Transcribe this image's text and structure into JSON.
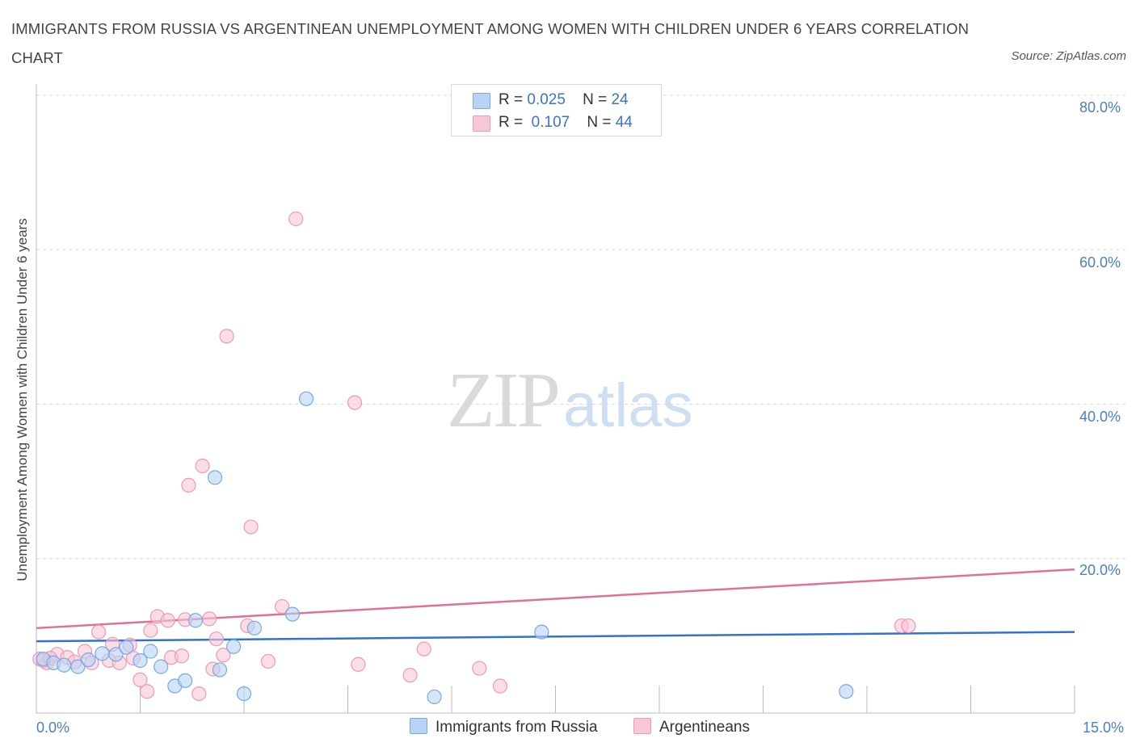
{
  "title": "IMMIGRANTS FROM RUSSIA VS ARGENTINEAN UNEMPLOYMENT AMONG WOMEN WITH CHILDREN UNDER 6 YEARS CORRELATION CHART",
  "source": "Source: ZipAtlas.com",
  "watermark": {
    "zip": "ZIP",
    "atlas": "atlas"
  },
  "legend": {
    "rows": [
      {
        "r_label": "R =",
        "r_value": "0.025",
        "n_label": "N =",
        "n_value": "24"
      },
      {
        "r_label": "R =",
        "r_value": "0.107",
        "n_label": "N =",
        "n_value": "44"
      }
    ]
  },
  "bottom_legend": {
    "series1": "Immigrants from Russia",
    "series2": "Argentineans"
  },
  "colors": {
    "series1_fill": "#b8d3f5",
    "series1_stroke": "#7aa8e4",
    "series1_line": "#3172cc",
    "series2_fill": "#f8c6d6",
    "series2_stroke": "#ec9ab6",
    "series2_line": "#e0709a",
    "axis_text": "#4a7ecf",
    "grid": "#d9d9d9"
  },
  "chart_data": {
    "type": "scatter",
    "title": "IMMIGRANTS FROM RUSSIA VS ARGENTINEAN UNEMPLOYMENT AMONG WOMEN WITH CHILDREN UNDER 6 YEARS CORRELATION CHART",
    "xlabel": "",
    "ylabel": "Unemployment Among Women with Children Under 6 years",
    "xlim": [
      0,
      15
    ],
    "ylim": [
      0,
      80
    ],
    "x_tick_labels": [
      "0.0%",
      "15.0%"
    ],
    "y_tick_labels": [
      "20.0%",
      "40.0%",
      "60.0%",
      "80.0%"
    ],
    "y_ticks": [
      20,
      40,
      60,
      80
    ],
    "grid": true,
    "series": [
      {
        "name": "Immigrants from Russia",
        "R": 0.025,
        "N": 24,
        "trend": {
          "x": [
            0,
            15
          ],
          "y": [
            9.3,
            10.5
          ]
        },
        "points": [
          {
            "x": 0.1,
            "y": 7.0
          },
          {
            "x": 0.25,
            "y": 6.5
          },
          {
            "x": 0.4,
            "y": 6.2
          },
          {
            "x": 0.6,
            "y": 6.0
          },
          {
            "x": 0.75,
            "y": 6.9
          },
          {
            "x": 0.95,
            "y": 7.7
          },
          {
            "x": 1.15,
            "y": 7.6
          },
          {
            "x": 1.3,
            "y": 8.5
          },
          {
            "x": 1.5,
            "y": 6.8
          },
          {
            "x": 1.65,
            "y": 8.0
          },
          {
            "x": 1.8,
            "y": 6.0
          },
          {
            "x": 2.0,
            "y": 3.5
          },
          {
            "x": 2.15,
            "y": 4.2
          },
          {
            "x": 2.3,
            "y": 12.0
          },
          {
            "x": 2.58,
            "y": 30.5
          },
          {
            "x": 2.65,
            "y": 5.6
          },
          {
            "x": 2.85,
            "y": 8.6
          },
          {
            "x": 3.0,
            "y": 2.5
          },
          {
            "x": 3.15,
            "y": 11.0
          },
          {
            "x": 3.7,
            "y": 12.8
          },
          {
            "x": 3.9,
            "y": 40.7
          },
          {
            "x": 5.75,
            "y": 2.1
          },
          {
            "x": 7.3,
            "y": 10.5
          },
          {
            "x": 11.7,
            "y": 2.8
          }
        ]
      },
      {
        "name": "Argentineans",
        "R": 0.107,
        "N": 44,
        "trend": {
          "x": [
            0,
            15
          ],
          "y": [
            11.0,
            18.6
          ]
        },
        "points": [
          {
            "x": 0.05,
            "y": 7.0
          },
          {
            "x": 0.15,
            "y": 6.5
          },
          {
            "x": 0.3,
            "y": 7.6
          },
          {
            "x": 0.45,
            "y": 7.2
          },
          {
            "x": 0.55,
            "y": 6.6
          },
          {
            "x": 0.7,
            "y": 8.0
          },
          {
            "x": 0.8,
            "y": 6.5
          },
          {
            "x": 0.9,
            "y": 10.5
          },
          {
            "x": 1.05,
            "y": 6.8
          },
          {
            "x": 1.1,
            "y": 8.9
          },
          {
            "x": 1.2,
            "y": 6.5
          },
          {
            "x": 1.35,
            "y": 8.8
          },
          {
            "x": 1.4,
            "y": 7.1
          },
          {
            "x": 1.5,
            "y": 4.3
          },
          {
            "x": 1.6,
            "y": 2.8
          },
          {
            "x": 1.65,
            "y": 10.7
          },
          {
            "x": 1.75,
            "y": 12.5
          },
          {
            "x": 1.9,
            "y": 12.0
          },
          {
            "x": 1.95,
            "y": 7.2
          },
          {
            "x": 2.1,
            "y": 7.4
          },
          {
            "x": 2.15,
            "y": 12.1
          },
          {
            "x": 2.2,
            "y": 29.5
          },
          {
            "x": 2.35,
            "y": 2.5
          },
          {
            "x": 2.4,
            "y": 32.0
          },
          {
            "x": 2.5,
            "y": 12.2
          },
          {
            "x": 2.55,
            "y": 5.7
          },
          {
            "x": 2.6,
            "y": 9.6
          },
          {
            "x": 2.7,
            "y": 7.5
          },
          {
            "x": 2.75,
            "y": 48.8
          },
          {
            "x": 3.05,
            "y": 11.3
          },
          {
            "x": 3.1,
            "y": 24.1
          },
          {
            "x": 3.35,
            "y": 6.7
          },
          {
            "x": 3.55,
            "y": 13.8
          },
          {
            "x": 3.75,
            "y": 64.0
          },
          {
            "x": 4.6,
            "y": 40.2
          },
          {
            "x": 4.65,
            "y": 6.3
          },
          {
            "x": 5.4,
            "y": 4.9
          },
          {
            "x": 5.6,
            "y": 8.3
          },
          {
            "x": 6.4,
            "y": 5.8
          },
          {
            "x": 6.7,
            "y": 3.5
          },
          {
            "x": 12.5,
            "y": 11.3
          },
          {
            "x": 12.6,
            "y": 11.3
          },
          {
            "x": 0.1,
            "y": 6.8
          },
          {
            "x": 0.2,
            "y": 7.1
          }
        ]
      }
    ]
  }
}
